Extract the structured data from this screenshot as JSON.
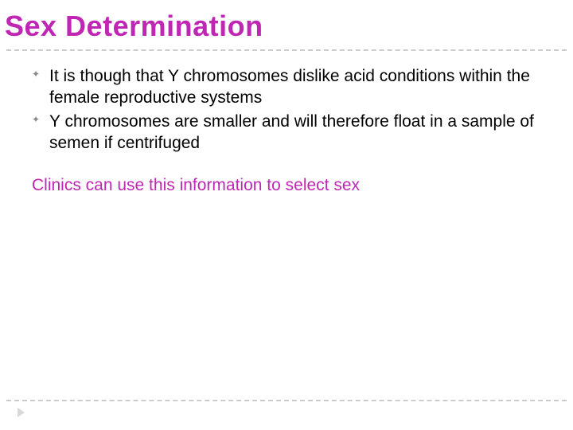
{
  "title": "Sex Determination",
  "bullets": [
    "It is though that Y chromosomes dislike acid conditions within the female reproductive systems",
    "Y chromosomes are smaller and will therefore float in a sample of semen if centrifuged"
  ],
  "note": "Clinics can use this information to select sex",
  "colors": {
    "title_color": "#c026b4",
    "note_color": "#c026b4",
    "body_text_color": "#000000",
    "divider_color": "#cccccc",
    "bullet_marker_color": "#888888",
    "background": "#ffffff"
  },
  "typography": {
    "title_font": "Comic Sans MS",
    "title_size_pt": 27,
    "body_font": "Arial",
    "body_size_pt": 16
  }
}
